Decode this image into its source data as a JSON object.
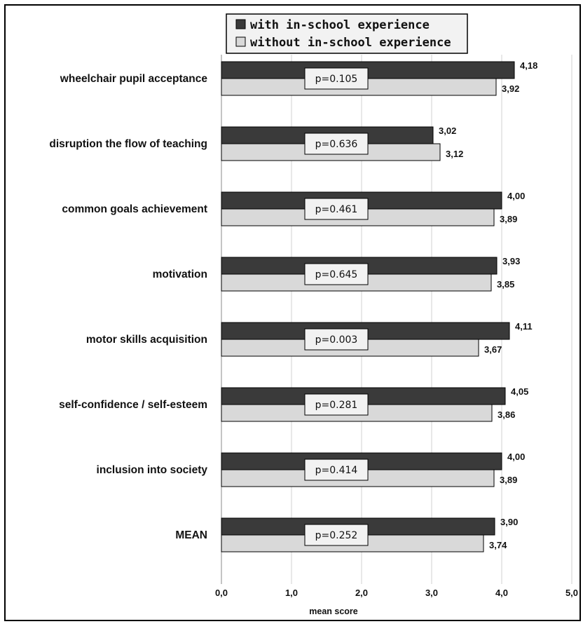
{
  "chart_data": {
    "type": "bar",
    "orientation": "horizontal",
    "categories": [
      "wheelchair pupil acceptance",
      "disruption the flow of teaching",
      "common goals achievement",
      "motivation",
      "motor skills acquisition",
      "self-confidence / self-esteem",
      "inclusion into society",
      "MEAN"
    ],
    "series": [
      {
        "name": "with in-school experience",
        "color": "#3a3a3a",
        "values": [
          4.18,
          3.02,
          4.0,
          3.93,
          4.11,
          4.05,
          4.0,
          3.9
        ],
        "labels": [
          "4,18",
          "3,02",
          "4,00",
          "3,93",
          "4,11",
          "4,05",
          "4,00",
          "3,90"
        ]
      },
      {
        "name": "without in-school experience",
        "color": "#d9d9d9",
        "values": [
          3.92,
          3.12,
          3.89,
          3.85,
          3.67,
          3.86,
          3.89,
          3.74
        ],
        "labels": [
          "3,92",
          "3,12",
          "3,89",
          "3,85",
          "3,67",
          "3,86",
          "3,89",
          "3,74"
        ]
      }
    ],
    "p_values": [
      "p=0.105",
      "p=0.636",
      "p=0.461",
      "p=0.645",
      "p=0.003",
      "p=0.281",
      "p=0.414",
      "p=0.252"
    ],
    "xlim": [
      0,
      5
    ],
    "xticks": [
      "0,0",
      "1,0",
      "2,0",
      "3,0",
      "4,0",
      "5,0"
    ],
    "xlabel": "mean score",
    "ylabel": "",
    "title": "",
    "grid": "vertical",
    "legend_position": "top"
  }
}
